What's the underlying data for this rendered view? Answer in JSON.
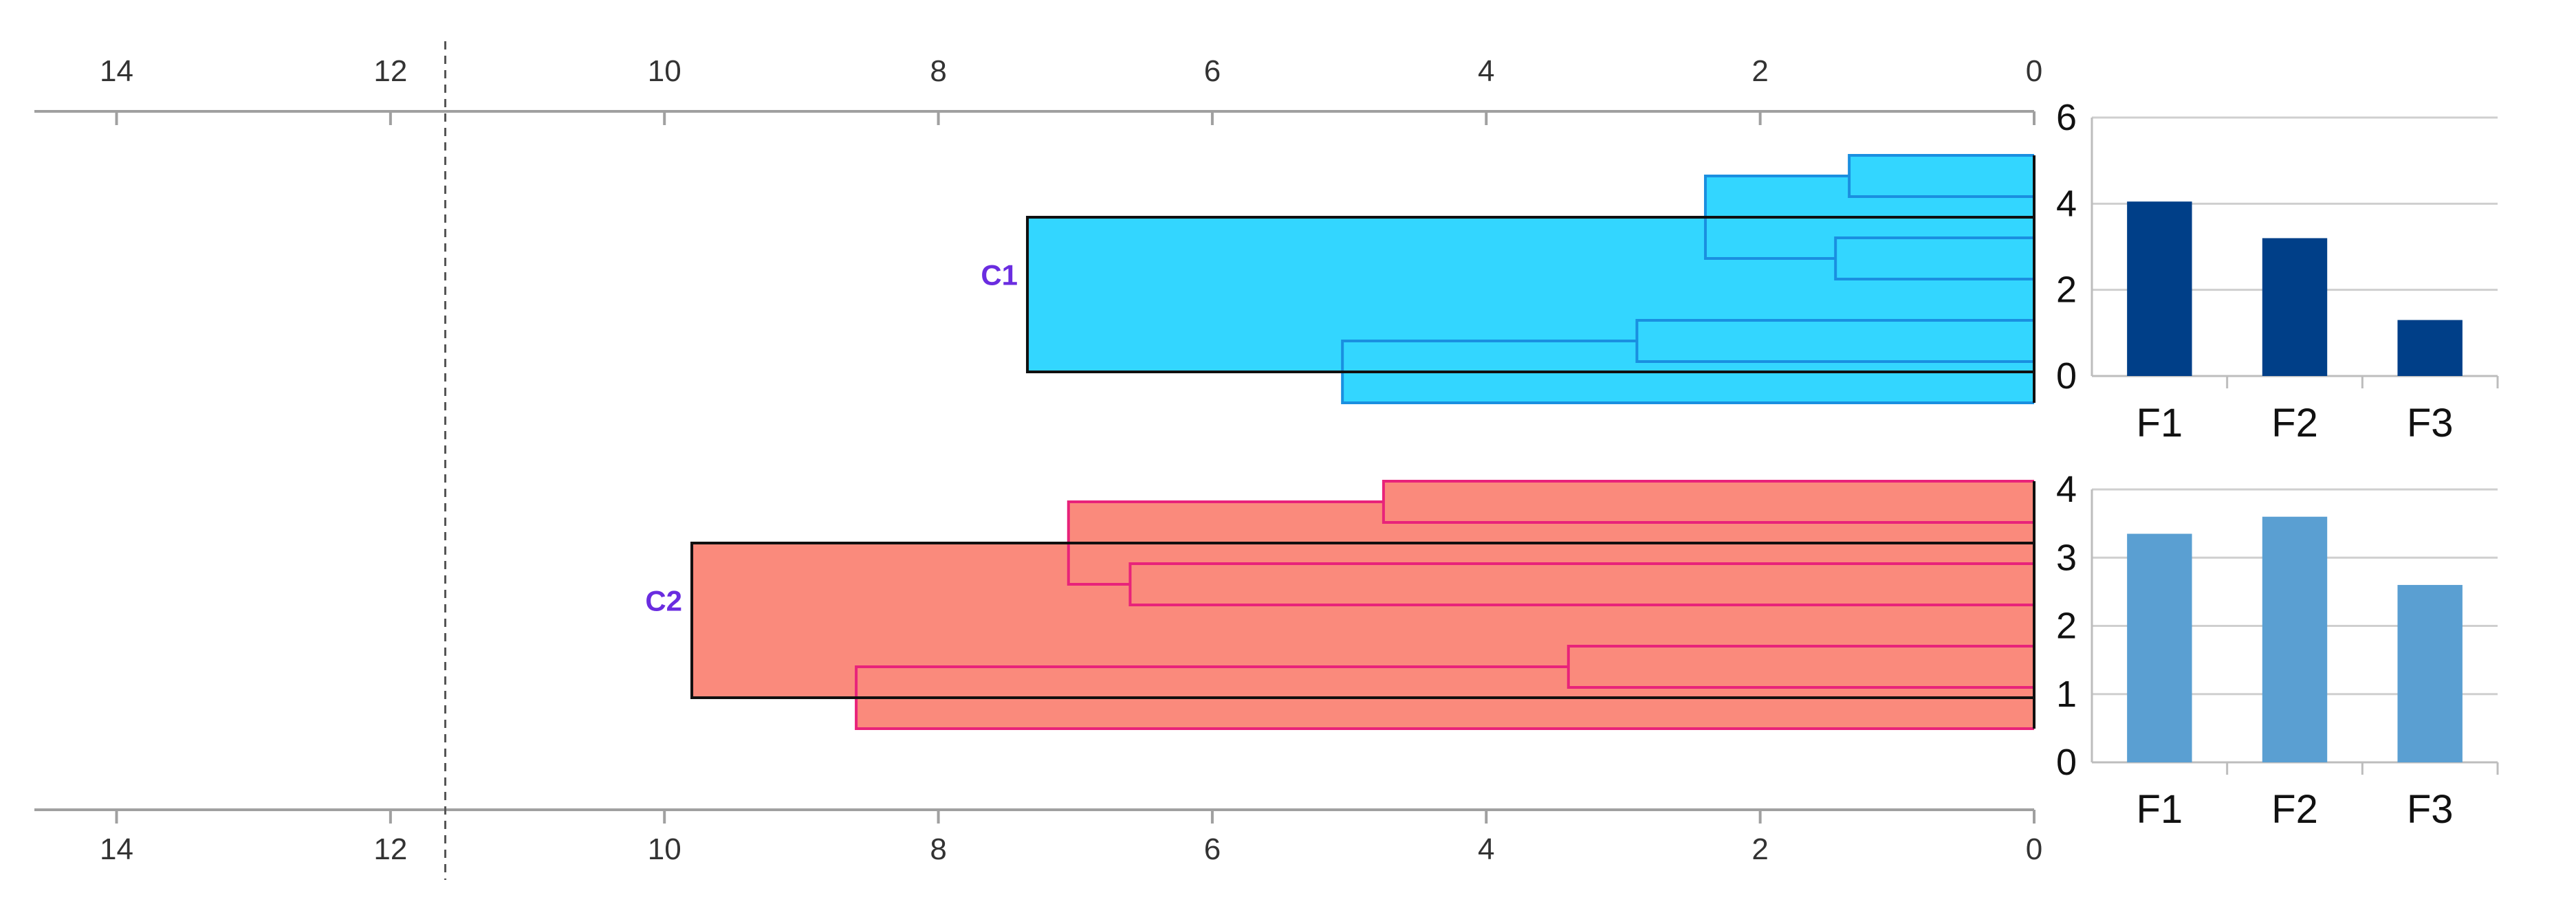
{
  "chart_data": [
    {
      "type": "dendrogram",
      "title": "",
      "x_axis": {
        "range": [
          14.6,
          0
        ],
        "ticks": [
          14,
          12,
          10,
          8,
          6,
          4,
          2,
          0
        ],
        "position": "top and bottom"
      },
      "cut_line_distance": 11.6,
      "leaf_count": 14,
      "leaf_distance": 0,
      "clusters": [
        {
          "label": "C1",
          "fill_color": "#33d6ff",
          "link_color": "#1a8fe0",
          "height": 7.35,
          "leaves": [
            0,
            1,
            2,
            3,
            4,
            5,
            6
          ]
        },
        {
          "label": "C2",
          "fill_color": "#fa8a7c",
          "link_color": "#e8237a",
          "height": 9.8,
          "leaves": [
            7,
            8,
            9,
            10,
            11,
            12,
            13
          ]
        }
      ],
      "root": {
        "height": 14.6,
        "link_color": "#8a5cf0"
      },
      "merges": [
        {
          "cluster": "C1",
          "left": "leaf:0",
          "right": "leaf:1",
          "height": 1.35
        },
        {
          "cluster": "C1",
          "left": "leaf:2",
          "right": "leaf:3",
          "height": 1.45
        },
        {
          "cluster": "C1",
          "left": "merge:0",
          "right": "merge:1",
          "height": 2.4
        },
        {
          "cluster": "C1",
          "left": "leaf:4",
          "right": "leaf:5",
          "height": 2.9
        },
        {
          "cluster": "C1",
          "left": "merge:3",
          "right": "leaf:6",
          "height": 5.05
        },
        {
          "cluster": "C1",
          "left": "merge:2",
          "right": "merge:4",
          "height": 7.35
        },
        {
          "cluster": "C2",
          "left": "leaf:7",
          "right": "leaf:8",
          "height": 4.75
        },
        {
          "cluster": "C2",
          "left": "leaf:9",
          "right": "leaf:10",
          "height": 6.6
        },
        {
          "cluster": "C2",
          "left": "merge:6",
          "right": "merge:7",
          "height": 7.05
        },
        {
          "cluster": "C2",
          "left": "leaf:11",
          "right": "leaf:12",
          "height": 3.4
        },
        {
          "cluster": "C2",
          "left": "merge:9",
          "right": "leaf:13",
          "height": 8.6
        },
        {
          "cluster": "C2",
          "left": "merge:8",
          "right": "merge:10",
          "height": 9.8
        }
      ]
    },
    {
      "type": "bar",
      "title": "",
      "categories": [
        "F1",
        "F2",
        "F3"
      ],
      "values": [
        4.05,
        3.2,
        1.3
      ],
      "ylim": [
        0,
        6
      ],
      "yticks": [
        0,
        2,
        4,
        6
      ],
      "color": "#003f88",
      "grid": true
    },
    {
      "type": "bar",
      "title": "",
      "categories": [
        "F1",
        "F2",
        "F3"
      ],
      "values": [
        3.35,
        3.6,
        2.6
      ],
      "ylim": [
        0,
        4
      ],
      "yticks": [
        0,
        1,
        2,
        3,
        4
      ],
      "color": "#5a9fd2",
      "grid": true
    }
  ]
}
